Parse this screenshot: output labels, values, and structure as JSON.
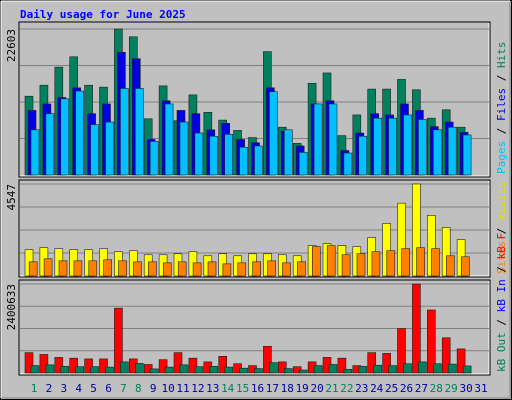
{
  "title": "Daily usage for June 2025",
  "chart_data": [
    {
      "type": "bar",
      "ylim": [
        0,
        22603
      ],
      "yticks": [
        22603
      ],
      "series": [
        {
          "name": "Hits",
          "color": "#00805c",
          "values": [
            12200,
            13900,
            16700,
            18300,
            13900,
            13600,
            22603,
            21400,
            8700,
            13800,
            8400,
            12400,
            9700,
            8500,
            6900,
            5800,
            19100,
            7400,
            4900,
            14200,
            15800,
            6100,
            9300,
            13300,
            13300,
            14800,
            13200,
            8800,
            10100,
            7400,
            null
          ]
        },
        {
          "name": "Files",
          "color": "#0000e0",
          "values": [
            10000,
            11000,
            12000,
            13500,
            9500,
            11000,
            19000,
            18000,
            5500,
            11500,
            10000,
            9500,
            7000,
            8000,
            5500,
            5000,
            13500,
            6800,
            4500,
            11000,
            11500,
            3800,
            6500,
            9500,
            9300,
            11000,
            10000,
            7500,
            8200,
            6600,
            null
          ]
        },
        {
          "name": "Pages",
          "color": "#00c0ff",
          "values": [
            7000,
            9500,
            11800,
            13000,
            7800,
            8200,
            13400,
            13400,
            5200,
            11000,
            8200,
            6500,
            6000,
            6300,
            4300,
            4500,
            12900,
            7000,
            3500,
            11000,
            11000,
            3400,
            6000,
            8800,
            8800,
            9300,
            8600,
            7000,
            7400,
            6200,
            null
          ]
        }
      ]
    },
    {
      "type": "bar",
      "ylim": [
        0,
        4547
      ],
      "yticks": [
        4547
      ],
      "series": [
        {
          "name": "Visits",
          "color": "#ffff00",
          "values": [
            1300,
            1400,
            1350,
            1300,
            1300,
            1350,
            1200,
            1250,
            1050,
            1050,
            1100,
            1200,
            1000,
            1100,
            1000,
            1100,
            1100,
            1050,
            1000,
            1500,
            1600,
            1500,
            1450,
            1900,
            2600,
            3600,
            4547,
            3000,
            2400,
            1800,
            null
          ]
        },
        {
          "name": "Sites",
          "color": "#ff8000",
          "values": [
            700,
            850,
            750,
            750,
            750,
            800,
            750,
            700,
            700,
            650,
            700,
            650,
            700,
            600,
            650,
            700,
            750,
            650,
            700,
            1450,
            1500,
            1050,
            1100,
            1200,
            1250,
            1350,
            1400,
            1350,
            1000,
            950,
            null
          ]
        }
      ]
    },
    {
      "type": "bar",
      "ylim": [
        0,
        2400633
      ],
      "yticks": [
        2400633
      ],
      "categories": [
        "1",
        "2",
        "3",
        "4",
        "5",
        "6",
        "7",
        "8",
        "9",
        "10",
        "11",
        "12",
        "13",
        "14",
        "15",
        "16",
        "17",
        "18",
        "19",
        "20",
        "21",
        "22",
        "23",
        "24",
        "25",
        "26",
        "27",
        "28",
        "29",
        "30",
        "31"
      ],
      "category_colors": [
        "#00805c",
        "#0000a0",
        "#0000a0",
        "#0000a0",
        "#0000a0",
        "#0000a0",
        "#00805c",
        "#00805c",
        "#0000a0",
        "#0000a0",
        "#0000a0",
        "#0000a0",
        "#0000a0",
        "#00805c",
        "#00805c",
        "#0000a0",
        "#0000a0",
        "#0000a0",
        "#0000a0",
        "#0000a0",
        "#00805c",
        "#00805c",
        "#0000a0",
        "#0000a0",
        "#0000a0",
        "#0000a0",
        "#0000a0",
        "#00805c",
        "#00805c",
        "#0000a0",
        "#0000a0"
      ],
      "series": [
        {
          "name": "kB F",
          "color": "#ff0000",
          "values": [
            550000,
            500000,
            420000,
            400000,
            380000,
            380000,
            1750000,
            380000,
            230000,
            360000,
            550000,
            400000,
            300000,
            450000,
            250000,
            200000,
            720000,
            300000,
            170000,
            300000,
            420000,
            400000,
            200000,
            550000,
            530000,
            1200000,
            2400633,
            1700000,
            950000,
            650000,
            null
          ]
        },
        {
          "name": "kB In",
          "color": "#0000ff",
          "values": [
            0,
            0,
            0,
            0,
            0,
            0,
            0,
            0,
            0,
            0,
            0,
            0,
            0,
            0,
            0,
            0,
            0,
            0,
            0,
            0,
            0,
            0,
            0,
            0,
            0,
            0,
            0,
            0,
            0,
            0,
            null
          ]
        },
        {
          "name": "kB Out",
          "color": "#00805c",
          "values": [
            200000,
            220000,
            180000,
            170000,
            170000,
            160000,
            300000,
            260000,
            110000,
            160000,
            220000,
            170000,
            180000,
            160000,
            130000,
            120000,
            280000,
            120000,
            80000,
            200000,
            230000,
            100000,
            180000,
            210000,
            200000,
            250000,
            300000,
            250000,
            240000,
            190000,
            null
          ]
        }
      ]
    }
  ]
}
